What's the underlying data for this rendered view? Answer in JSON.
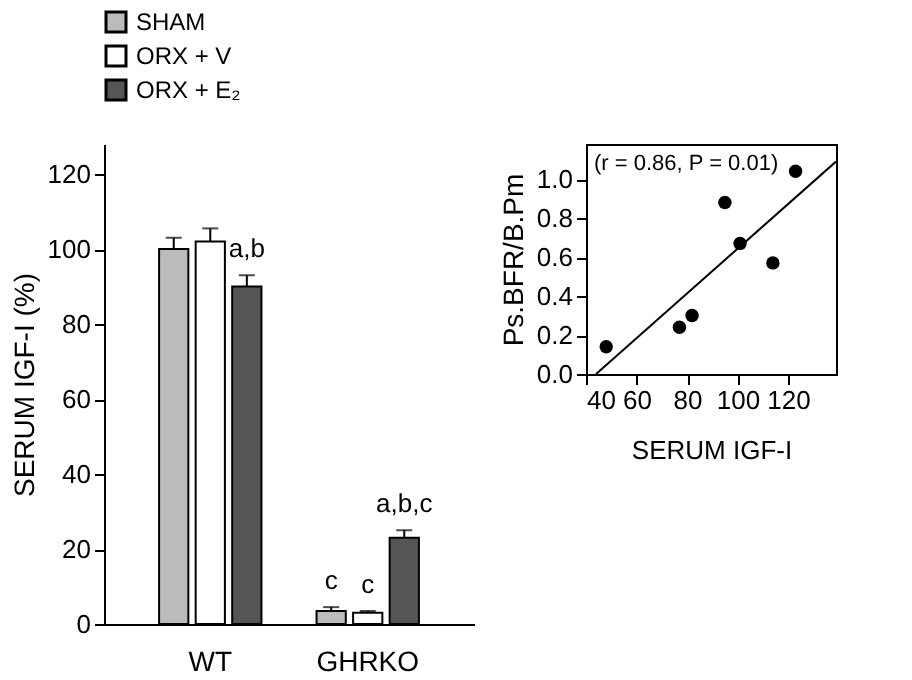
{
  "chart_data": [
    {
      "type": "bar",
      "ylabel": "SERUM IGF-I (%)",
      "categories": [
        "WT",
        "GHRKO"
      ],
      "ylim": [
        0,
        128
      ],
      "yticks": [
        0,
        20,
        40,
        60,
        80,
        100,
        120
      ],
      "grid": false,
      "legend": "top left",
      "series": [
        {
          "name": "SHAM",
          "color": "#bbbbbb",
          "values": [
            100,
            3.5
          ],
          "errors": [
            [
              100,
              103
            ],
            [
              3.5,
              4.5
            ]
          ],
          "value_labels": [
            null,
            "c"
          ]
        },
        {
          "name": "ORX + V",
          "color": "#ffffff",
          "values": [
            102,
            3
          ],
          "errors": [
            [
              102,
              105.5
            ],
            [
              3,
              3.5
            ]
          ],
          "value_labels": [
            null,
            "c"
          ]
        },
        {
          "name": "ORX + E₂",
          "color": "#555555",
          "values": [
            90,
            23
          ],
          "errors": [
            [
              90,
              93
            ],
            [
              23,
              25
            ]
          ],
          "value_labels": [
            "a,b",
            "a,b,c"
          ]
        }
      ]
    },
    {
      "type": "scatter",
      "xlabel": "SERUM IGF-I",
      "ylabel": "Ps.BFR/B.Pm",
      "xlim": [
        40,
        139
      ],
      "ylim": [
        0,
        1.18
      ],
      "xticks": [
        40,
        60,
        80,
        100,
        120
      ],
      "yticks": [
        {
          "value": 0,
          "label": "0.0"
        },
        {
          "value": 0.2,
          "label": "0.2"
        },
        {
          "value": 0.4,
          "label": "0.4"
        },
        {
          "value": 0.6,
          "label": "0.6"
        },
        {
          "value": 0.8,
          "label": "0.8"
        },
        {
          "value": 1.0,
          "label": "1.0"
        }
      ],
      "grid": false,
      "series": [
        {
          "type": "scatter",
          "marker": "circle",
          "color": "#000000",
          "x": [
            48,
            77,
            82,
            95,
            101,
            114,
            123
          ],
          "values": [
            0.14,
            0.24,
            0.3,
            0.88,
            0.67,
            0.57,
            1.04
          ]
        },
        {
          "type": "line",
          "color": "#000000",
          "x": [
            44,
            139
          ],
          "values": [
            0,
            1.09
          ]
        }
      ],
      "annotations": [
        "(r = 0.86, P = 0.01)"
      ]
    }
  ]
}
